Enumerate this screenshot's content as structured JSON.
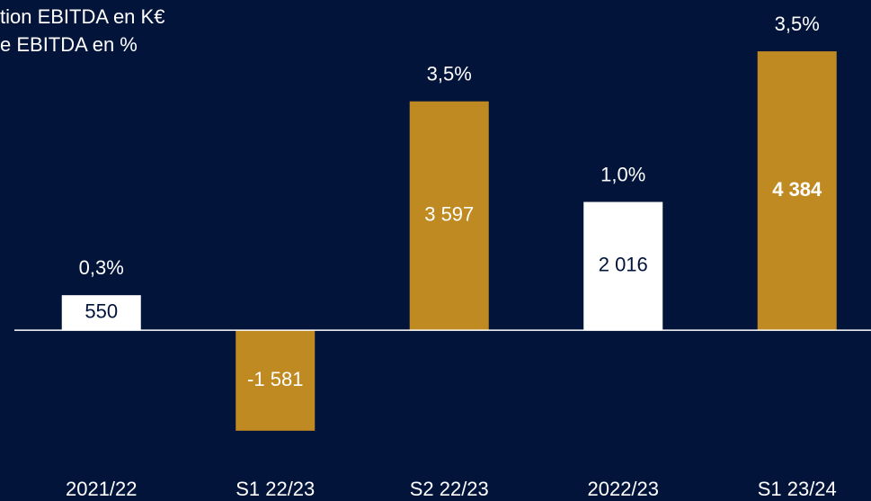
{
  "chart_data": {
    "type": "bar",
    "categories": [
      "2021/22",
      "S1 22/23",
      "S2 22/23",
      "2022/23",
      "S1 23/24"
    ],
    "series": [
      {
        "name": "tion EBITDA en K€",
        "colors": [
          "#ffffff",
          "#c08a22",
          "#c08a22",
          "#ffffff",
          "#c08a22"
        ],
        "values": [
          550,
          -1581,
          3597,
          2016,
          4384
        ],
        "value_labels": [
          "550",
          "-1 581",
          "3 597",
          "2 016",
          "4 384"
        ]
      },
      {
        "name": "e EBITDA en %",
        "values": [
          0.3,
          null,
          3.5,
          1.0,
          3.5
        ],
        "value_labels": [
          "0,3%",
          null,
          "3,5%",
          "1,0%",
          "3,5%"
        ]
      }
    ],
    "ylim": [
      -2000,
      5000
    ]
  }
}
